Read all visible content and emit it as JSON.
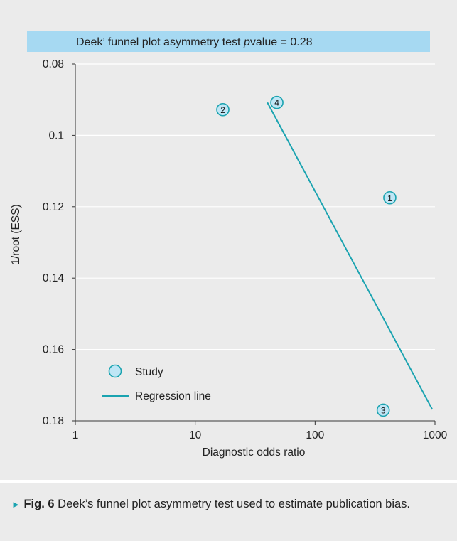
{
  "chart_data": {
    "type": "scatter",
    "title": "Deek’ funnel plot asymmetry test",
    "title_p_italic": "p",
    "title_p_rest": "value = 0.28",
    "xlabel": "Diagnostic odds ratio",
    "ylabel": "1/root (ESS)",
    "x_scale": "log",
    "xlim": [
      1,
      1000
    ],
    "ylim": [
      0.08,
      0.18
    ],
    "y_inverted": true,
    "x_ticks": [
      1,
      10,
      100,
      1000
    ],
    "x_tick_labels": [
      "1",
      "10",
      "100",
      "1000"
    ],
    "y_ticks": [
      0.08,
      0.1,
      0.12,
      0.14,
      0.16,
      0.18
    ],
    "y_tick_labels": [
      "0.08",
      "0.1",
      "0.12",
      "0.14",
      "0.16",
      "0.18"
    ],
    "grid": "horizontal",
    "series": [
      {
        "name": "Study",
        "marker": "circle",
        "color": "#1aa3b0",
        "fill": "#bfe6f5",
        "points": [
          {
            "label": "1",
            "x": 420,
            "y": 0.1175
          },
          {
            "label": "2",
            "x": 17,
            "y": 0.0928
          },
          {
            "label": "3",
            "x": 370,
            "y": 0.177
          },
          {
            "label": "4",
            "x": 48,
            "y": 0.0908
          }
        ]
      },
      {
        "name": "Regression line",
        "type": "line",
        "color": "#1aa3b0",
        "points": [
          {
            "x": 40,
            "y": 0.0908
          },
          {
            "x": 950,
            "y": 0.1768
          }
        ]
      }
    ],
    "legend": {
      "position": "bottom-left",
      "items": [
        "Study",
        "Regression line"
      ]
    }
  },
  "colors": {
    "panel_bg": "#ebebeb",
    "title_bar": "#a6d9f2",
    "grid": "#ffffff",
    "axis": "#333333",
    "accent": "#1aa3b0",
    "point_fill": "#bfe6f5"
  },
  "caption": {
    "marker": "►",
    "label": "Fig. 6",
    "text": " Deek’s funnel plot asymmetry test used to estimate publication bias."
  }
}
